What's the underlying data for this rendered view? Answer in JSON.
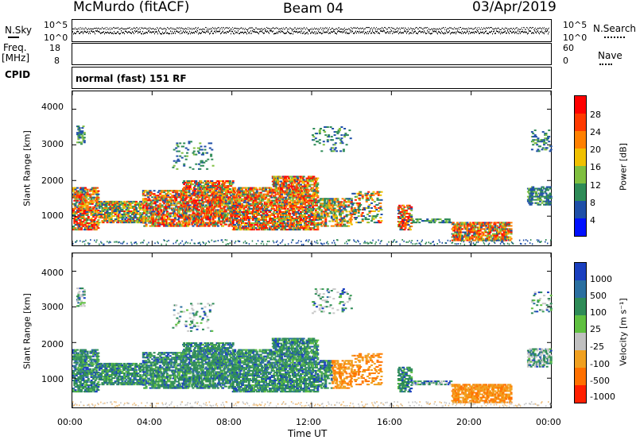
{
  "header": {
    "station": "McMurdo (fitACF)",
    "beam": "Beam 04",
    "date": "03/Apr/2019"
  },
  "noise_panel": {
    "left_label": "N.Sky",
    "right_label": "N.Search",
    "tick_top": "10^5",
    "tick_bottom": "10^0"
  },
  "freq_panel": {
    "left_label_1": "Freq.",
    "left_label_2": "[MHz]",
    "right_label": "Nave",
    "left_ticks": [
      "18",
      "8"
    ],
    "right_ticks": [
      "60",
      "0"
    ]
  },
  "cpid_panel": {
    "label": "CPID",
    "text": "normal (fast) 151 RF"
  },
  "chart_data": [
    {
      "type": "heatmap",
      "name": "power",
      "ylabel": "Slant Range [km]",
      "ylim": [
        180,
        4500
      ],
      "yticks": [
        "1000",
        "2000",
        "3000",
        "4000"
      ],
      "xlim": [
        0,
        24
      ],
      "xticks": [
        "00:00",
        "04:00",
        "08:00",
        "12:00",
        "16:00",
        "20:00",
        "00:00"
      ],
      "xlabel": "Time UT",
      "colorbar_label": "Power [dB]",
      "colorbar_ticks": [
        "4",
        "8",
        "12",
        "16",
        "20",
        "24",
        "28"
      ],
      "colors": [
        "#0010ff",
        "#1f4fa8",
        "#2e8b57",
        "#7fbf3f",
        "#f0c000",
        "#ff8000",
        "#ff2000",
        "#ff0000"
      ],
      "legend": "right",
      "grid": false
    },
    {
      "type": "heatmap",
      "name": "velocity",
      "ylabel": "Slant Range [km]",
      "ylim": [
        180,
        4500
      ],
      "yticks": [
        "1000",
        "2000",
        "3000",
        "4000"
      ],
      "xlim": [
        0,
        24
      ],
      "xticks": [
        "00:00",
        "04:00",
        "08:00",
        "12:00",
        "16:00",
        "20:00",
        "00:00"
      ],
      "xlabel": "Time UT",
      "colorbar_label": "Velocity [m s⁻¹]",
      "colorbar_ticks": [
        "1000",
        "500",
        "100",
        "25",
        "-25",
        "-100",
        "-500",
        "-1000"
      ],
      "colors": [
        "#1a3fbf",
        "#2a6fa0",
        "#2e8b57",
        "#5fc040",
        "#c0c0c0",
        "#f0a020",
        "#ff7000",
        "#ff2000"
      ],
      "legend": "right",
      "grid": false
    }
  ]
}
